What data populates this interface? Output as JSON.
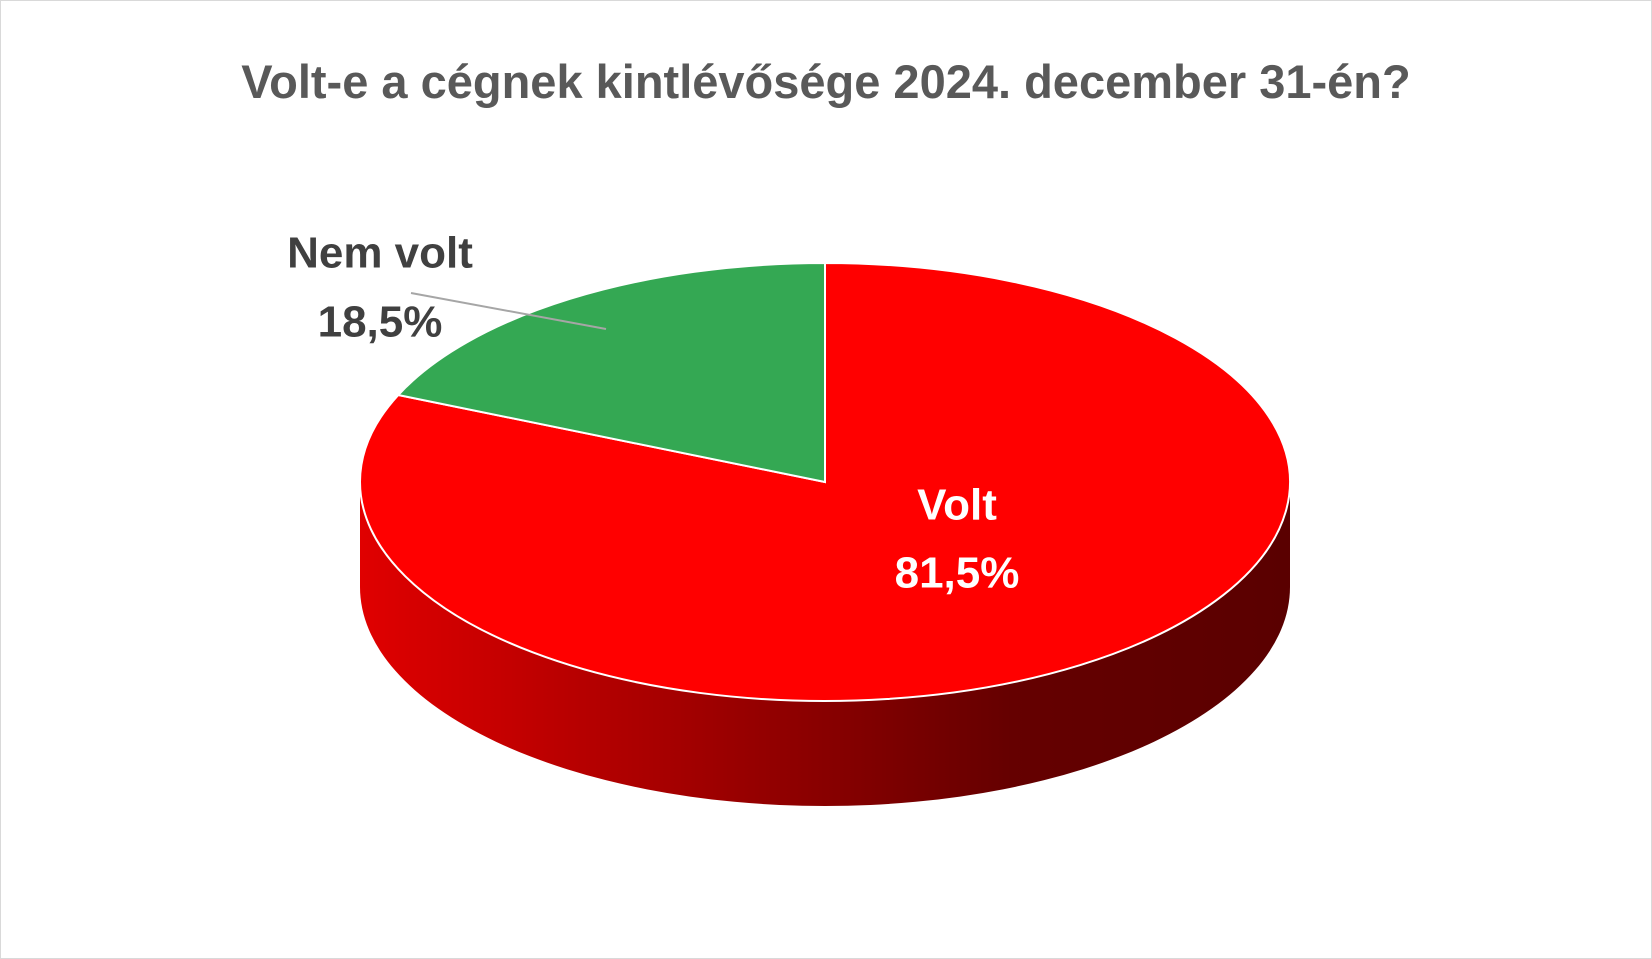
{
  "chart_data": {
    "type": "pie",
    "title": "Volt-e a cégnek kintlévősége 2024. december 31-én?",
    "categories": [
      "Volt",
      "Nem volt"
    ],
    "values": [
      81.5,
      18.5
    ],
    "value_labels": [
      "81,5%",
      "18,5%"
    ],
    "colors": [
      "#ff0000",
      "#34a853"
    ],
    "start_angle": 0,
    "direction": "clockwise",
    "three_d": true
  }
}
